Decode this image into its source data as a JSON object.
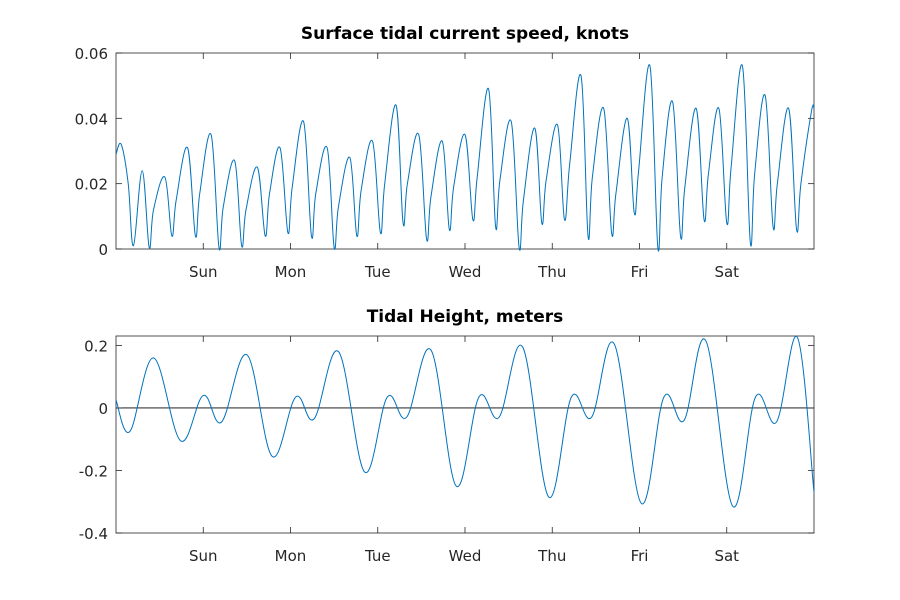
{
  "chart_data": [
    {
      "type": "line",
      "title": "Surface tidal current speed, knots",
      "xlabel": "",
      "ylabel": "",
      "x_tick_labels": [
        "Sun",
        "Mon",
        "Tue",
        "Wed",
        "Thu",
        "Fri",
        "Sat"
      ],
      "x_tick_days": [
        1,
        2,
        3,
        4,
        5,
        6,
        7
      ],
      "xlim_days": [
        0,
        8
      ],
      "ylim": [
        0,
        0.06
      ],
      "y_ticks": [
        0,
        0.02,
        0.04,
        0.06
      ],
      "y_tick_labels": [
        "0",
        "0.02",
        "0.04",
        "0.06"
      ],
      "grid": false,
      "series_color": "#0072bd",
      "series": [
        {
          "name": "speed",
          "x_days": [
            0,
            0.06,
            0.14,
            0.2,
            0.3,
            0.38,
            0.43,
            0.56,
            0.64,
            0.69,
            0.82,
            0.91,
            0.96,
            1.09,
            1.18,
            1.23,
            1.36,
            1.44,
            1.49,
            1.62,
            1.71,
            1.76,
            1.88,
            1.97,
            2.02,
            2.15,
            2.24,
            2.29,
            2.42,
            2.5,
            2.55,
            2.68,
            2.76,
            2.81,
            2.94,
            3.03,
            3.08,
            3.21,
            3.29,
            3.34,
            3.47,
            3.56,
            3.61,
            3.74,
            3.82,
            3.87,
            4,
            4.09,
            4.14,
            4.27,
            4.35,
            4.4,
            4.53,
            4.62,
            4.67,
            4.8,
            4.88,
            4.93,
            5.06,
            5.14,
            5.2,
            5.33,
            5.41,
            5.46,
            5.59,
            5.68,
            5.73,
            5.86,
            5.94,
            5.99,
            6.12,
            6.21,
            6.26,
            6.38,
            6.47,
            6.52,
            6.65,
            6.74,
            6.79,
            6.91,
            7,
            7.05,
            7.18,
            7.27,
            7.32,
            7.44,
            7.53,
            7.58,
            7.71,
            7.8,
            7.85,
            7.97,
            8
          ],
          "values": [
            0.029,
            0.032,
            0.02,
            0.001,
            0.024,
            0.0005,
            0.012,
            0.022,
            0.004,
            0.015,
            0.031,
            0.004,
            0.017,
            0.035,
            0.0005,
            0.013,
            0.027,
            0.001,
            0.012,
            0.025,
            0.004,
            0.017,
            0.031,
            0.005,
            0.019,
            0.039,
            0.004,
            0.017,
            0.031,
            0.0005,
            0.013,
            0.028,
            0.004,
            0.018,
            0.033,
            0.005,
            0.02,
            0.044,
            0.008,
            0.02,
            0.035,
            0.003,
            0.016,
            0.033,
            0.006,
            0.019,
            0.035,
            0.009,
            0.022,
            0.049,
            0.007,
            0.021,
            0.039,
            0.0005,
            0.015,
            0.037,
            0.008,
            0.021,
            0.038,
            0.009,
            0.026,
            0.053,
            0.004,
            0.022,
            0.043,
            0.005,
            0.017,
            0.04,
            0.011,
            0.024,
            0.056,
            0.0005,
            0.022,
            0.045,
            0.004,
            0.019,
            0.043,
            0.009,
            0.023,
            0.043,
            0.008,
            0.025,
            0.056,
            0.002,
            0.023,
            0.047,
            0.007,
            0.02,
            0.043,
            0.006,
            0.02,
            0.042,
            0.043
          ]
        }
      ]
    },
    {
      "type": "line",
      "title": "Tidal Height, meters",
      "xlabel": "",
      "ylabel": "",
      "x_tick_labels": [
        "Sun",
        "Mon",
        "Tue",
        "Wed",
        "Thu",
        "Fri",
        "Sat"
      ],
      "x_tick_days": [
        1,
        2,
        3,
        4,
        5,
        6,
        7
      ],
      "xlim_days": [
        0,
        8
      ],
      "ylim": [
        -0.4,
        0.23
      ],
      "y_ticks": [
        -0.4,
        -0.2,
        0,
        0.2
      ],
      "y_tick_labels": [
        "-0.4",
        "-0.2",
        "0",
        "0.2"
      ],
      "grid": false,
      "reference_line_y": 0,
      "series_color": "#0072bd",
      "series": [
        {
          "name": "height",
          "x_days": [
            0,
            0.16,
            0.43,
            0.74,
            1,
            1.21,
            1.5,
            1.79,
            2.06,
            2.27,
            2.55,
            2.85,
            3.11,
            3.33,
            3.61,
            3.9,
            4.16,
            4.39,
            4.66,
            4.96,
            5.22,
            5.45,
            5.71,
            6.02,
            6.28,
            6.51,
            6.76,
            7.07,
            7.33,
            7.57,
            7.81,
            8
          ],
          "values": [
            0.025,
            -0.075,
            0.16,
            -0.105,
            0.04,
            -0.045,
            0.17,
            -0.155,
            0.035,
            -0.035,
            0.18,
            -0.205,
            0.035,
            -0.03,
            0.185,
            -0.25,
            0.035,
            -0.03,
            0.195,
            -0.285,
            0.035,
            -0.03,
            0.205,
            -0.305,
            0.035,
            -0.04,
            0.215,
            -0.315,
            0.035,
            -0.045,
            0.225,
            -0.27
          ]
        }
      ]
    }
  ]
}
